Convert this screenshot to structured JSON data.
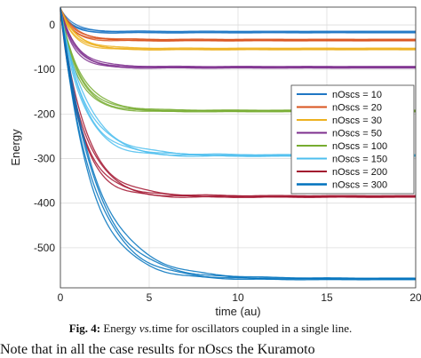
{
  "chart_data": {
    "type": "line",
    "xlabel": "time (au)",
    "ylabel": "Energy",
    "xlim": [
      0,
      20
    ],
    "ylim": [
      -590,
      40
    ],
    "xticks": [
      0,
      5,
      10,
      15,
      20
    ],
    "yticks": [
      0,
      -100,
      -200,
      -300,
      -400,
      -500
    ],
    "grid": true,
    "legend_position": "right",
    "series": [
      {
        "name": "nOscs = 10",
        "color": "#1f77c4",
        "start": 35,
        "final": -16,
        "tau": 0.6
      },
      {
        "name": "nOscs = 20",
        "color": "#d9531e",
        "start": 35,
        "final": -34,
        "tau": 0.7
      },
      {
        "name": "nOscs = 30",
        "color": "#edb120",
        "start": 35,
        "final": -54,
        "tau": 0.8
      },
      {
        "name": "nOscs = 50",
        "color": "#7e2f8e",
        "start": 35,
        "final": -95,
        "tau": 0.8
      },
      {
        "name": "nOscs = 100",
        "color": "#77ac30",
        "start": 35,
        "final": -193,
        "tau": 1.0
      },
      {
        "name": "nOscs = 150",
        "color": "#4dbeee",
        "start": 35,
        "final": -293,
        "tau": 1.3
      },
      {
        "name": "nOscs = 200",
        "color": "#a2142f",
        "start": 35,
        "final": -385,
        "tau": 1.2
      },
      {
        "name": "nOscs = 300",
        "color": "#0072bd",
        "start": 35,
        "final": -570,
        "tau": 1.8
      }
    ]
  },
  "caption": {
    "fig_label": "Fig. 4:",
    "text_before": " Energy ",
    "text_italic": "vs.",
    "text_after": "time for oscillators coupled in a single line."
  },
  "trailing_text": "Note that in all the case results for nOscs the Kuramoto"
}
